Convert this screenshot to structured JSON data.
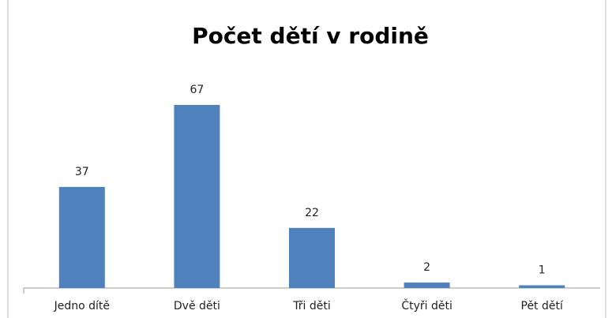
{
  "chart_data": {
    "type": "bar",
    "title": "Počet dětí v rodině",
    "categories": [
      "Jedno dítě",
      "Dvě děti",
      "Tři děti",
      "Čtyři děti",
      "Pět dětí"
    ],
    "values": [
      37,
      67,
      22,
      2,
      1
    ],
    "color": "#4f81bd"
  }
}
